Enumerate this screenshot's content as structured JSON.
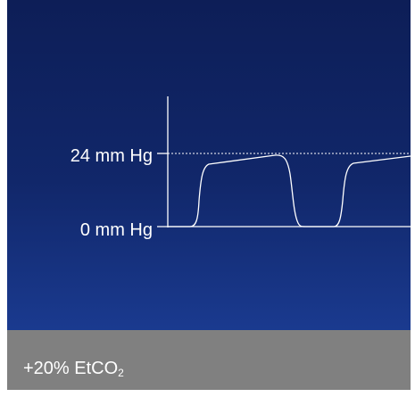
{
  "labels": {
    "upper": "24 mm Hg",
    "lower": "0 mm Hg"
  },
  "caption": {
    "prefix": "+20% EtCO",
    "subscript": "2"
  },
  "colors": {
    "panel_top": "#0d1e57",
    "panel_bottom": "#1a3a8f",
    "caption_bg": "#808080",
    "line": "#ffffff"
  }
}
